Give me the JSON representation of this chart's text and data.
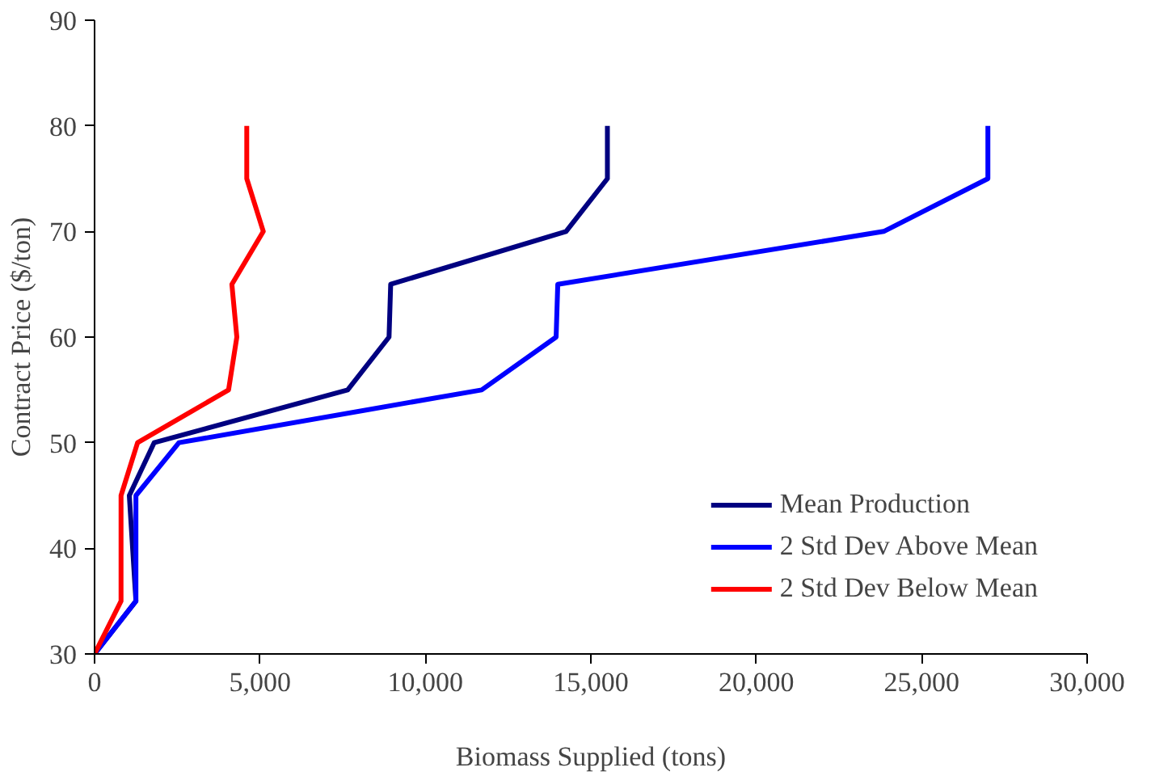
{
  "chart_data": {
    "type": "line",
    "xlabel": "Biomass Supplied (tons)",
    "ylabel": "Contract Price ($/ton)",
    "xlim": [
      0,
      30000
    ],
    "xticks": [
      {
        "value": 0,
        "label": "0"
      },
      {
        "value": 5000,
        "label": "5,000"
      },
      {
        "value": 10000,
        "label": "10,000"
      },
      {
        "value": 15000,
        "label": "15,000"
      },
      {
        "value": 20000,
        "label": "20,000"
      },
      {
        "value": 25000,
        "label": "25,000"
      },
      {
        "value": 30000,
        "label": "30,000"
      }
    ],
    "ylim": [
      30,
      90
    ],
    "yticks": [
      30,
      40,
      50,
      60,
      70,
      80,
      90
    ],
    "grid": false,
    "legend": "bottom right",
    "marker": "none",
    "line_style": "solid",
    "series": [
      {
        "name": "Mean Production",
        "color": "#000080",
        "x": [
          0,
          1250,
          1050,
          1800,
          7650,
          8900,
          8950,
          14250,
          15500,
          15500
        ],
        "values": [
          30,
          35,
          45,
          50,
          55,
          60,
          65,
          70,
          75,
          80
        ]
      },
      {
        "name": "2 Std Dev Above Mean",
        "color": "#0000ff",
        "x": [
          0,
          1250,
          1250,
          2550,
          11700,
          13950,
          14000,
          23850,
          27000,
          27000
        ],
        "values": [
          30,
          35,
          45,
          50,
          55,
          60,
          65,
          70,
          75,
          80
        ]
      },
      {
        "name": "2 Std Dev Below Mean",
        "color": "#ff0000",
        "x": [
          0,
          800,
          800,
          1300,
          4050,
          4300,
          4150,
          5100,
          4600,
          4600
        ],
        "values": [
          30,
          35,
          45,
          50,
          55,
          60,
          65,
          70,
          75,
          80
        ]
      }
    ]
  }
}
